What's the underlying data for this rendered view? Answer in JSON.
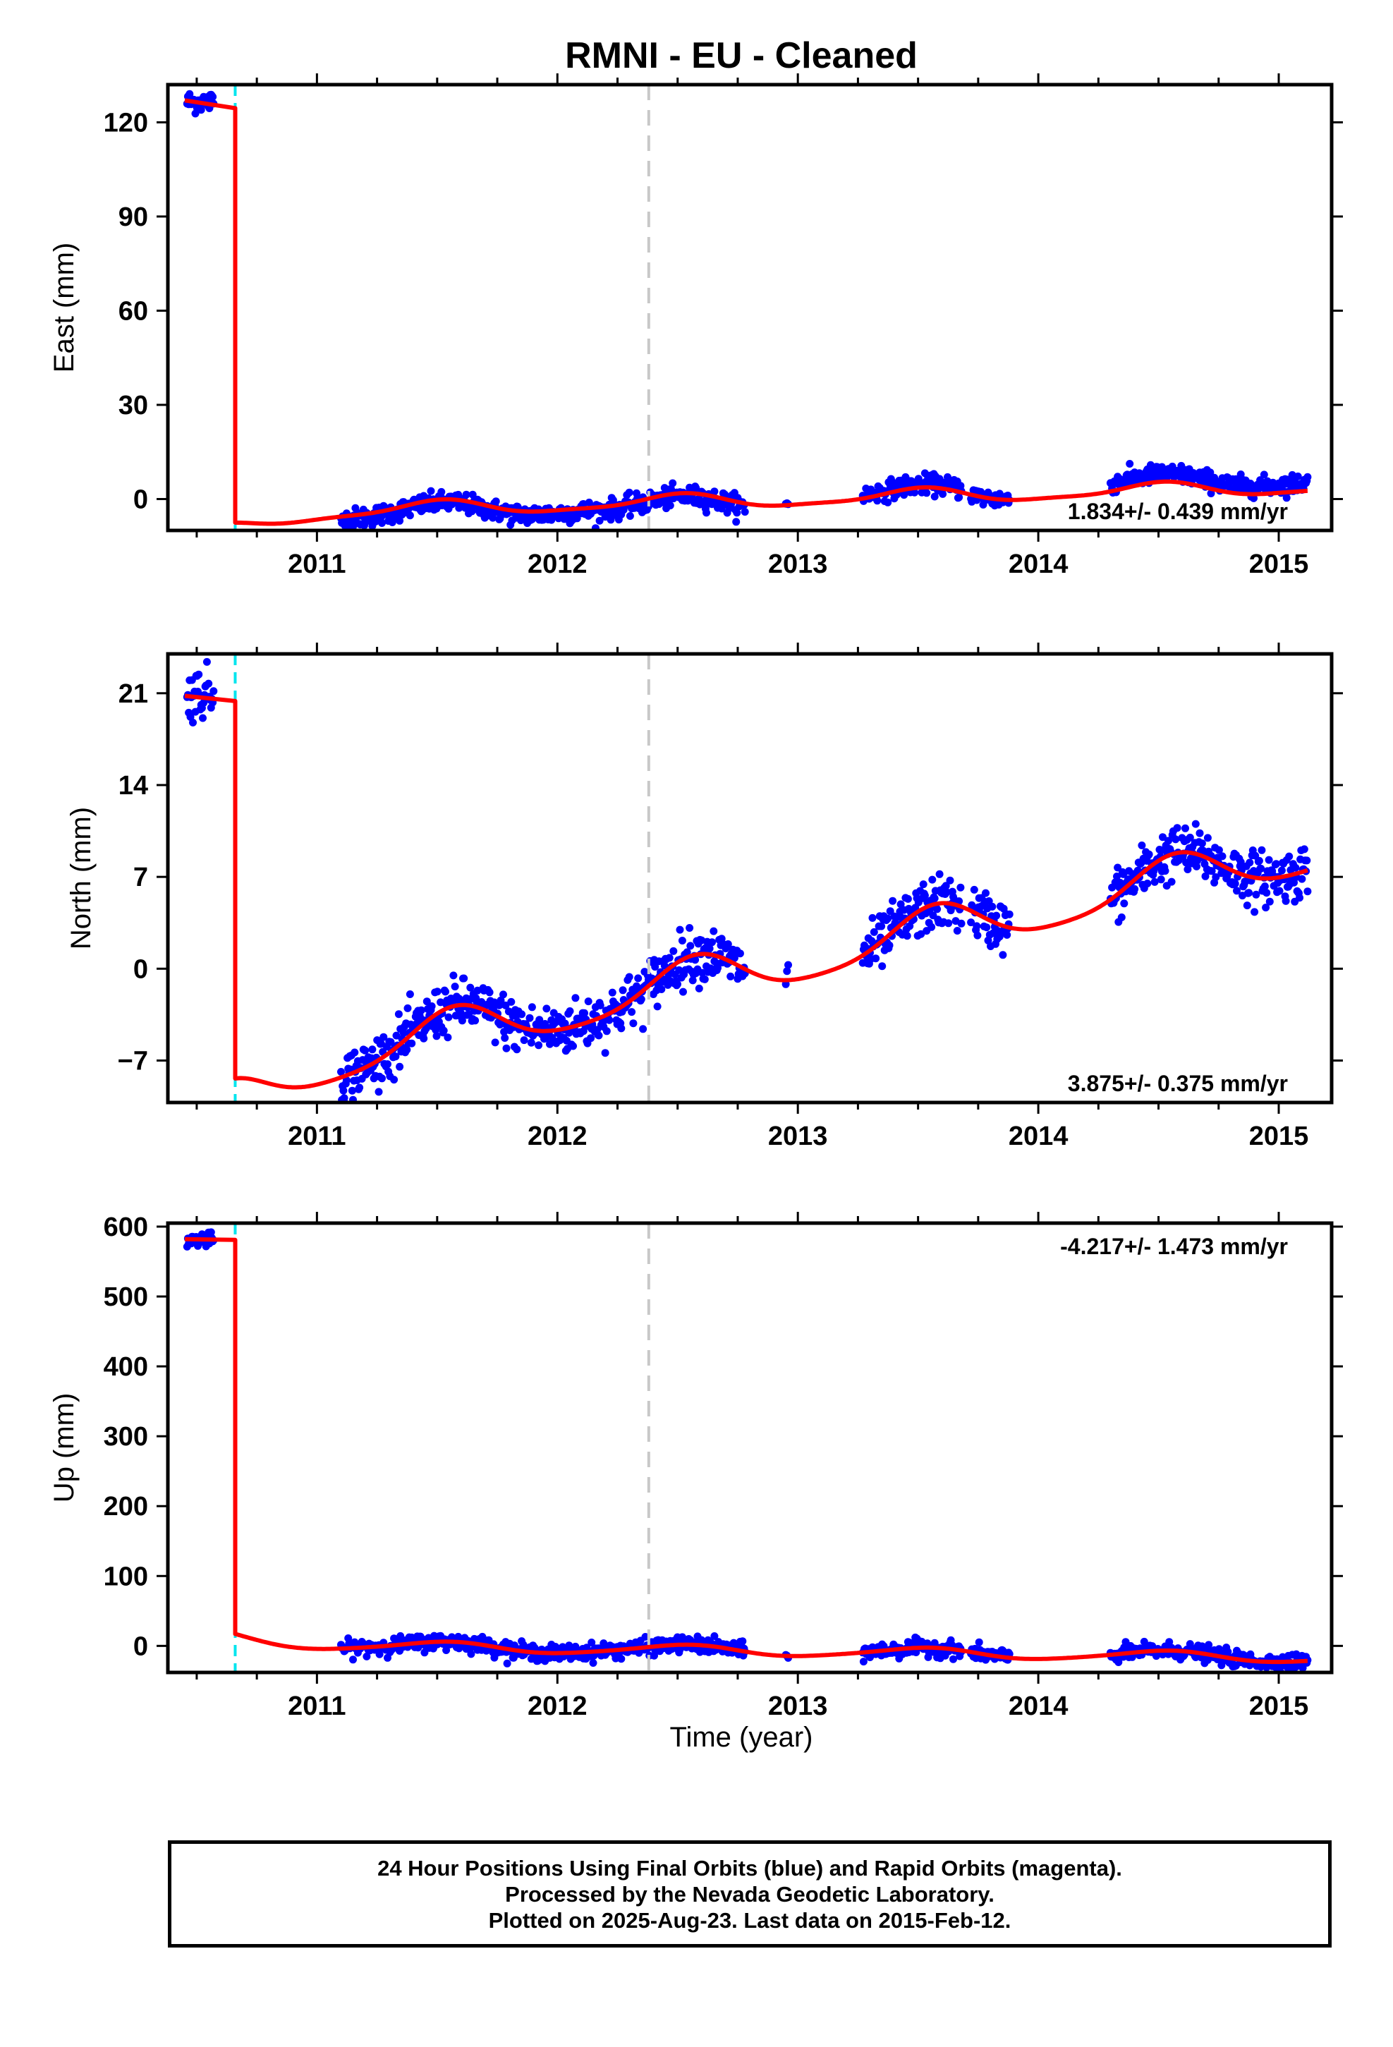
{
  "title": "RMNI  - EU - Cleaned",
  "xlabel": "Time (year)",
  "footer": {
    "line1": "24 Hour Positions Using Final Orbits (blue) and Rapid Orbits (magenta).",
    "line2": "Processed by the Nevada Geodetic Laboratory.",
    "line3": "Plotted on 2025-Aug-23. Last data on 2015-Feb-12."
  },
  "colors": {
    "points": "#0000ff",
    "model": "#ff0000",
    "equipment_change": "#00e5ee",
    "dashed_line": "#c8c8c8"
  },
  "chart_data": [
    {
      "type": "scatter",
      "ylabel": "East (mm)",
      "xlim": [
        2010.38,
        2015.22
      ],
      "ylim": [
        -10,
        132
      ],
      "xticks": [
        2011,
        2012,
        2013,
        2014,
        2015
      ],
      "yticks": [
        0,
        30,
        60,
        90,
        120
      ],
      "rate_text": "1.834+/- 0.439 mm/yr",
      "rate_position": "bottom-right",
      "offset_epoch": 2010.66,
      "dashed_epoch": 2012.38,
      "series": [
        {
          "role": "observations",
          "segments": [
            {
              "x_start": 2010.46,
              "x_end": 2010.57,
              "trend": 126.5,
              "noise": 1.8
            },
            {
              "x_start": 2011.1,
              "x_end": 2012.78,
              "trend": -1.0,
              "noise": 1.6
            },
            {
              "x_start": 2012.95,
              "x_end": 2012.96,
              "trend": 0.5,
              "noise": 0.5
            },
            {
              "x_start": 2013.27,
              "x_end": 2013.68,
              "trend": 1.0,
              "noise": 1.5
            },
            {
              "x_start": 2013.72,
              "x_end": 2013.88,
              "trend": 0.0,
              "noise": 1.5
            },
            {
              "x_start": 2014.3,
              "x_end": 2015.12,
              "trend": 2.5,
              "noise": 1.5
            }
          ],
          "points_per_year": 300
        },
        {
          "role": "model",
          "pre": {
            "x_start": 2010.45,
            "x_end": 2010.66,
            "y_start": 127,
            "y_end": 124.5
          },
          "post": {
            "x_start": 2010.66,
            "x_end": 2015.12,
            "y_offset": -4.3,
            "rate": 1.834,
            "annual_amp": 2.2,
            "annual_phase": 4.7,
            "semi_amp": 0.6,
            "semi_phase": 1.0,
            "transient_amp": -4.5,
            "transient_tau": 0.25
          }
        }
      ]
    },
    {
      "type": "scatter",
      "ylabel": "North (mm)",
      "xlim": [
        2010.38,
        2015.22
      ],
      "ylim": [
        -10.2,
        24
      ],
      "xticks": [
        2011,
        2012,
        2013,
        2014,
        2015
      ],
      "yticks": [
        -7,
        0,
        7,
        14,
        21
      ],
      "rate_text": "3.875+/- 0.375 mm/yr",
      "rate_position": "bottom-right",
      "offset_epoch": 2010.66,
      "dashed_epoch": 2012.38,
      "series": [
        {
          "role": "observations",
          "segments": [
            {
              "x_start": 2010.46,
              "x_end": 2010.57,
              "trend": 21.0,
              "noise": 1.0
            },
            {
              "x_start": 2011.1,
              "x_end": 2012.78,
              "trend": 0,
              "noise": 1.0
            },
            {
              "x_start": 2012.95,
              "x_end": 2012.96,
              "trend": 0,
              "noise": 1.0
            },
            {
              "x_start": 2013.27,
              "x_end": 2013.68,
              "trend": 0,
              "noise": 1.0
            },
            {
              "x_start": 2013.72,
              "x_end": 2013.88,
              "trend": 0,
              "noise": 1.0
            },
            {
              "x_start": 2014.3,
              "x_end": 2015.12,
              "trend": 0,
              "noise": 1.0
            }
          ],
          "points_per_year": 300
        },
        {
          "role": "model",
          "pre": {
            "x_start": 2010.45,
            "x_end": 2010.66,
            "y_start": 20.8,
            "y_end": 20.4
          },
          "post": {
            "x_start": 2010.66,
            "x_end": 2015.12,
            "y_offset": -8.4,
            "rate": 3.875,
            "annual_amp": 1.75,
            "annual_phase": 4.3,
            "semi_amp": 0.3,
            "semi_phase": 0.5,
            "transient_amp": -1.6,
            "transient_tau": 0.2
          }
        }
      ]
    },
    {
      "type": "scatter",
      "ylabel": "Up (mm)",
      "xlim": [
        2010.38,
        2015.22
      ],
      "ylim": [
        -38,
        605
      ],
      "xticks": [
        2011,
        2012,
        2013,
        2014,
        2015
      ],
      "yticks": [
        0,
        100,
        200,
        300,
        400,
        500,
        600
      ],
      "rate_text": "-4.217+/- 1.473 mm/yr",
      "rate_position": "top-right",
      "offset_epoch": 2010.66,
      "dashed_epoch": 2012.38,
      "series": [
        {
          "role": "observations",
          "segments": [
            {
              "x_start": 2010.46,
              "x_end": 2010.57,
              "trend": 581,
              "noise": 5.0
            },
            {
              "x_start": 2011.1,
              "x_end": 2012.78,
              "trend": 0,
              "noise": 5.5
            },
            {
              "x_start": 2012.95,
              "x_end": 2012.96,
              "trend": 0,
              "noise": 3.0
            },
            {
              "x_start": 2013.27,
              "x_end": 2013.68,
              "trend": 0,
              "noise": 5.5
            },
            {
              "x_start": 2013.72,
              "x_end": 2013.88,
              "trend": 0,
              "noise": 5.5
            },
            {
              "x_start": 2014.3,
              "x_end": 2015.12,
              "trend": 0,
              "noise": 5.5
            }
          ],
          "points_per_year": 300
        },
        {
          "role": "model",
          "pre": {
            "x_start": 2010.45,
            "x_end": 2010.66,
            "y_start": 582,
            "y_end": 581
          },
          "post": {
            "x_start": 2010.66,
            "x_end": 2015.12,
            "y_offset": 2.0,
            "rate": -4.217,
            "annual_amp": 7.0,
            "annual_phase": 4.6,
            "semi_amp": 1.0,
            "semi_phase": 0.3,
            "transient_amp": 10.0,
            "transient_tau": 0.2
          }
        }
      ]
    }
  ]
}
